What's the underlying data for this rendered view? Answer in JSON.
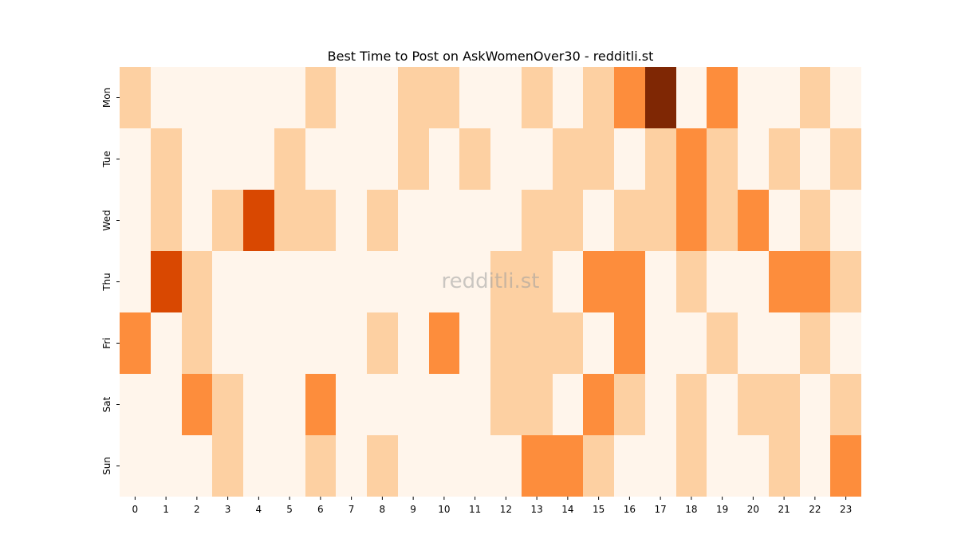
{
  "chart_data": {
    "type": "heatmap",
    "title": "Best Time to Post on AskWomenOver30 - redditli.st",
    "xlabel": "",
    "ylabel": "",
    "x": [
      "0",
      "1",
      "2",
      "3",
      "4",
      "5",
      "6",
      "7",
      "8",
      "9",
      "10",
      "11",
      "12",
      "13",
      "14",
      "15",
      "16",
      "17",
      "18",
      "19",
      "20",
      "21",
      "22",
      "23"
    ],
    "y": [
      "Mon",
      "Tue",
      "Wed",
      "Thu",
      "Fri",
      "Sat",
      "Sun"
    ],
    "values": [
      [
        1,
        0,
        0,
        0,
        0,
        0,
        1,
        0,
        0,
        1,
        1,
        0,
        0,
        1,
        0,
        1,
        2,
        4,
        0,
        2,
        0,
        0,
        1,
        0
      ],
      [
        0,
        1,
        0,
        0,
        0,
        1,
        0,
        0,
        0,
        1,
        0,
        1,
        0,
        0,
        1,
        1,
        0,
        1,
        2,
        1,
        0,
        1,
        0,
        1
      ],
      [
        0,
        1,
        0,
        1,
        3,
        1,
        1,
        0,
        1,
        0,
        0,
        0,
        0,
        1,
        1,
        0,
        1,
        1,
        2,
        1,
        2,
        0,
        1,
        0
      ],
      [
        0,
        3,
        1,
        0,
        0,
        0,
        0,
        0,
        0,
        0,
        0,
        0,
        1,
        1,
        0,
        2,
        2,
        0,
        1,
        0,
        0,
        2,
        2,
        1
      ],
      [
        2,
        0,
        1,
        0,
        0,
        0,
        0,
        0,
        1,
        0,
        2,
        0,
        1,
        1,
        1,
        0,
        2,
        0,
        0,
        1,
        0,
        0,
        1,
        0
      ],
      [
        0,
        0,
        2,
        1,
        0,
        0,
        2,
        0,
        0,
        0,
        0,
        0,
        1,
        1,
        0,
        2,
        1,
        0,
        1,
        0,
        1,
        1,
        0,
        1
      ],
      [
        0,
        0,
        0,
        1,
        0,
        0,
        1,
        0,
        1,
        0,
        0,
        0,
        0,
        2,
        2,
        1,
        0,
        0,
        1,
        0,
        0,
        1,
        0,
        2
      ]
    ],
    "vmin": 0,
    "vmax": 4,
    "colormap": "Oranges",
    "color_levels": [
      "#fff5eb",
      "#fdd0a2",
      "#fd8d3c",
      "#d94801",
      "#7f2704"
    ],
    "colorbar": false,
    "grid": false
  },
  "watermark": "redditli.st"
}
